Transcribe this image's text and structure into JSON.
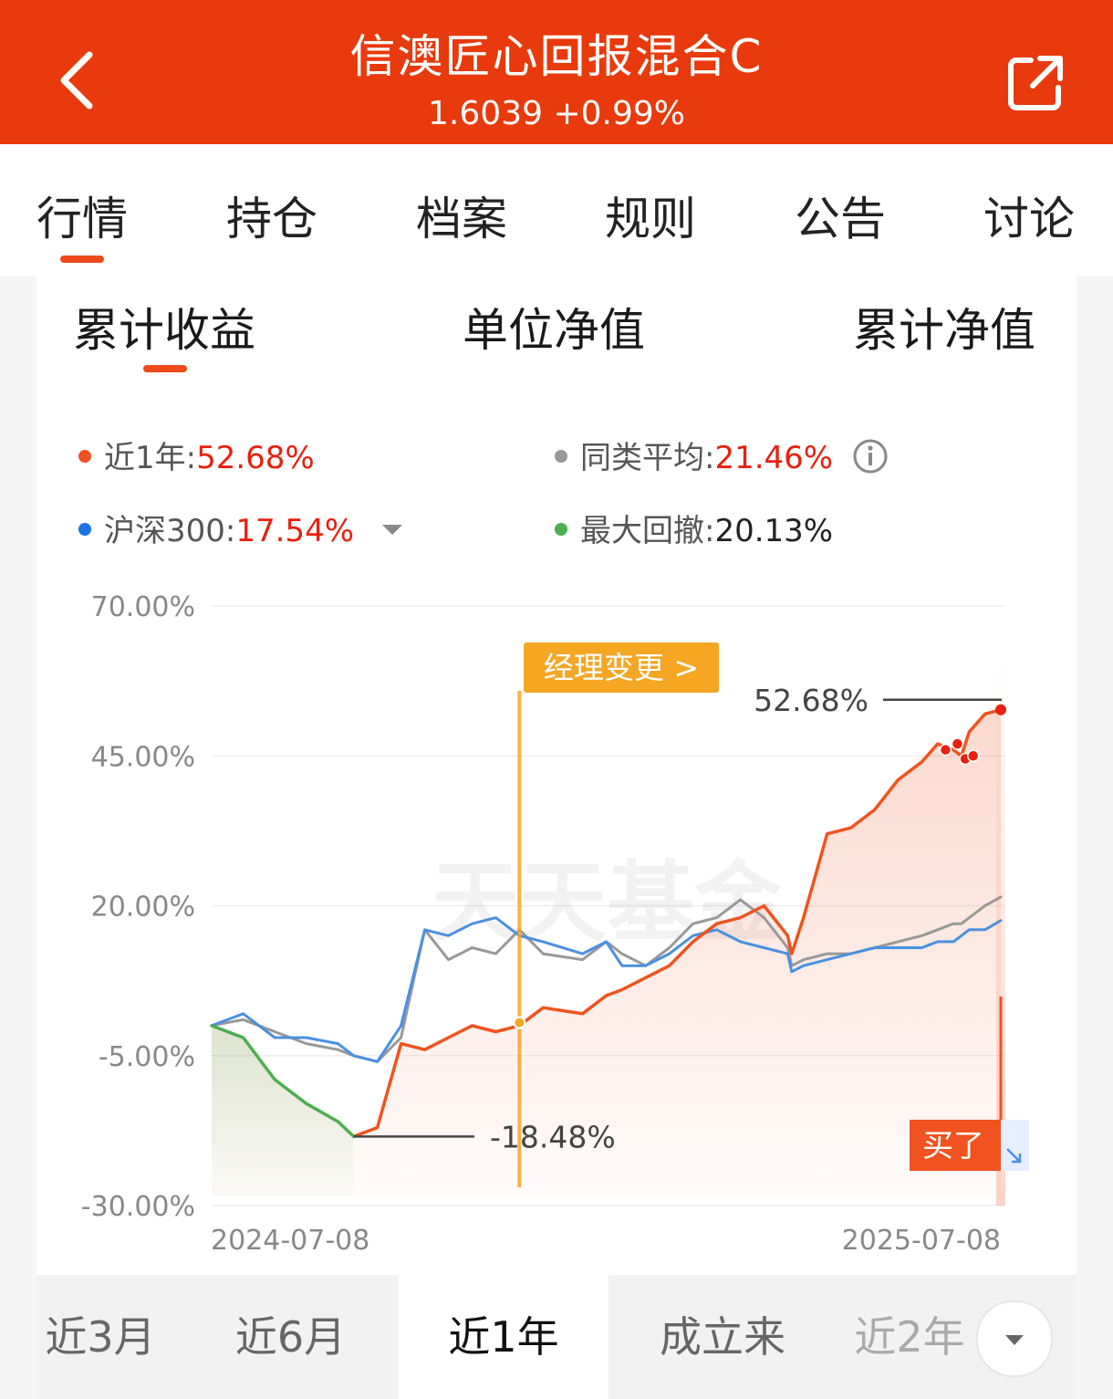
{
  "header": {
    "title": "信澳匠心回报混合C",
    "subtitle": "1.6039 +0.99%"
  },
  "tabs": [
    "行情",
    "持仓",
    "档案",
    "规则",
    "公告",
    "讨论"
  ],
  "subtabs": [
    "累计收益",
    "单位净值",
    "累计净值"
  ],
  "stats": {
    "fund_label": "近1年:",
    "fund_value": "52.68%",
    "avg_label": "同类平均:",
    "avg_value": "21.46%",
    "index_label": "沪深300:",
    "index_value": "17.54%",
    "dd_label": "最大回撤:",
    "dd_value": "20.13%"
  },
  "colors": {
    "fund": "#f0531f",
    "avg": "#999999",
    "index": "#4a90e2",
    "drawdown": "#4caf50",
    "header": "#e83a0c"
  },
  "chart_data": {
    "type": "line",
    "yticks": [
      "70.00%",
      "45.00%",
      "20.00%",
      "-5.00%",
      "-30.00%"
    ],
    "ylim": [
      -30,
      70
    ],
    "x_start_label": "2024-07-08",
    "x_end_label": "2025-07-08",
    "x_fraction": [
      0,
      0.04,
      0.08,
      0.12,
      0.16,
      0.18,
      0.21,
      0.24,
      0.27,
      0.3,
      0.33,
      0.36,
      0.39,
      0.42,
      0.47,
      0.5,
      0.52,
      0.55,
      0.58,
      0.61,
      0.64,
      0.67,
      0.7,
      0.73,
      0.735,
      0.75,
      0.78,
      0.81,
      0.84,
      0.87,
      0.9,
      0.92,
      0.94,
      0.95,
      0.96,
      0.98,
      1.0
    ],
    "series": [
      {
        "name": "近1年",
        "values": [
          0,
          -2,
          -9,
          -13,
          -16,
          -18.48,
          -17,
          -3,
          -4,
          -2,
          0,
          -1,
          0,
          3,
          2,
          5,
          6,
          8,
          10,
          14,
          17,
          18,
          20,
          15,
          12,
          18,
          32,
          33,
          36,
          41,
          44,
          47,
          46,
          45,
          49,
          52,
          52.68
        ]
      },
      {
        "name": "同类平均",
        "values": [
          0,
          1,
          -1,
          -3,
          -4,
          -5,
          -6,
          -2,
          16,
          11,
          13,
          12,
          16,
          12,
          11,
          14,
          12,
          10,
          13,
          17,
          18,
          21,
          18,
          13,
          10,
          11,
          12,
          12,
          13,
          14,
          15,
          16,
          17,
          17,
          18,
          20,
          21.46
        ]
      },
      {
        "name": "沪深300",
        "values": [
          0,
          2,
          -2,
          -2,
          -3,
          -5,
          -6,
          0,
          16,
          15,
          17,
          18,
          15,
          14,
          12,
          14,
          10,
          10,
          12,
          15,
          16,
          14,
          13,
          12,
          9,
          10,
          11,
          12,
          13,
          13,
          13,
          14,
          14,
          15,
          16,
          16,
          17.54
        ]
      }
    ],
    "drawdown_label": "-18.48%",
    "max_label": "52.68%",
    "manager_change_label": "经理变更 >",
    "manager_change_x": 0.39,
    "buy_label": "买了",
    "watermark": "天天基金",
    "grid": true
  },
  "periods": [
    "近3月",
    "近6月",
    "近1年",
    "成立来",
    "近2年"
  ]
}
